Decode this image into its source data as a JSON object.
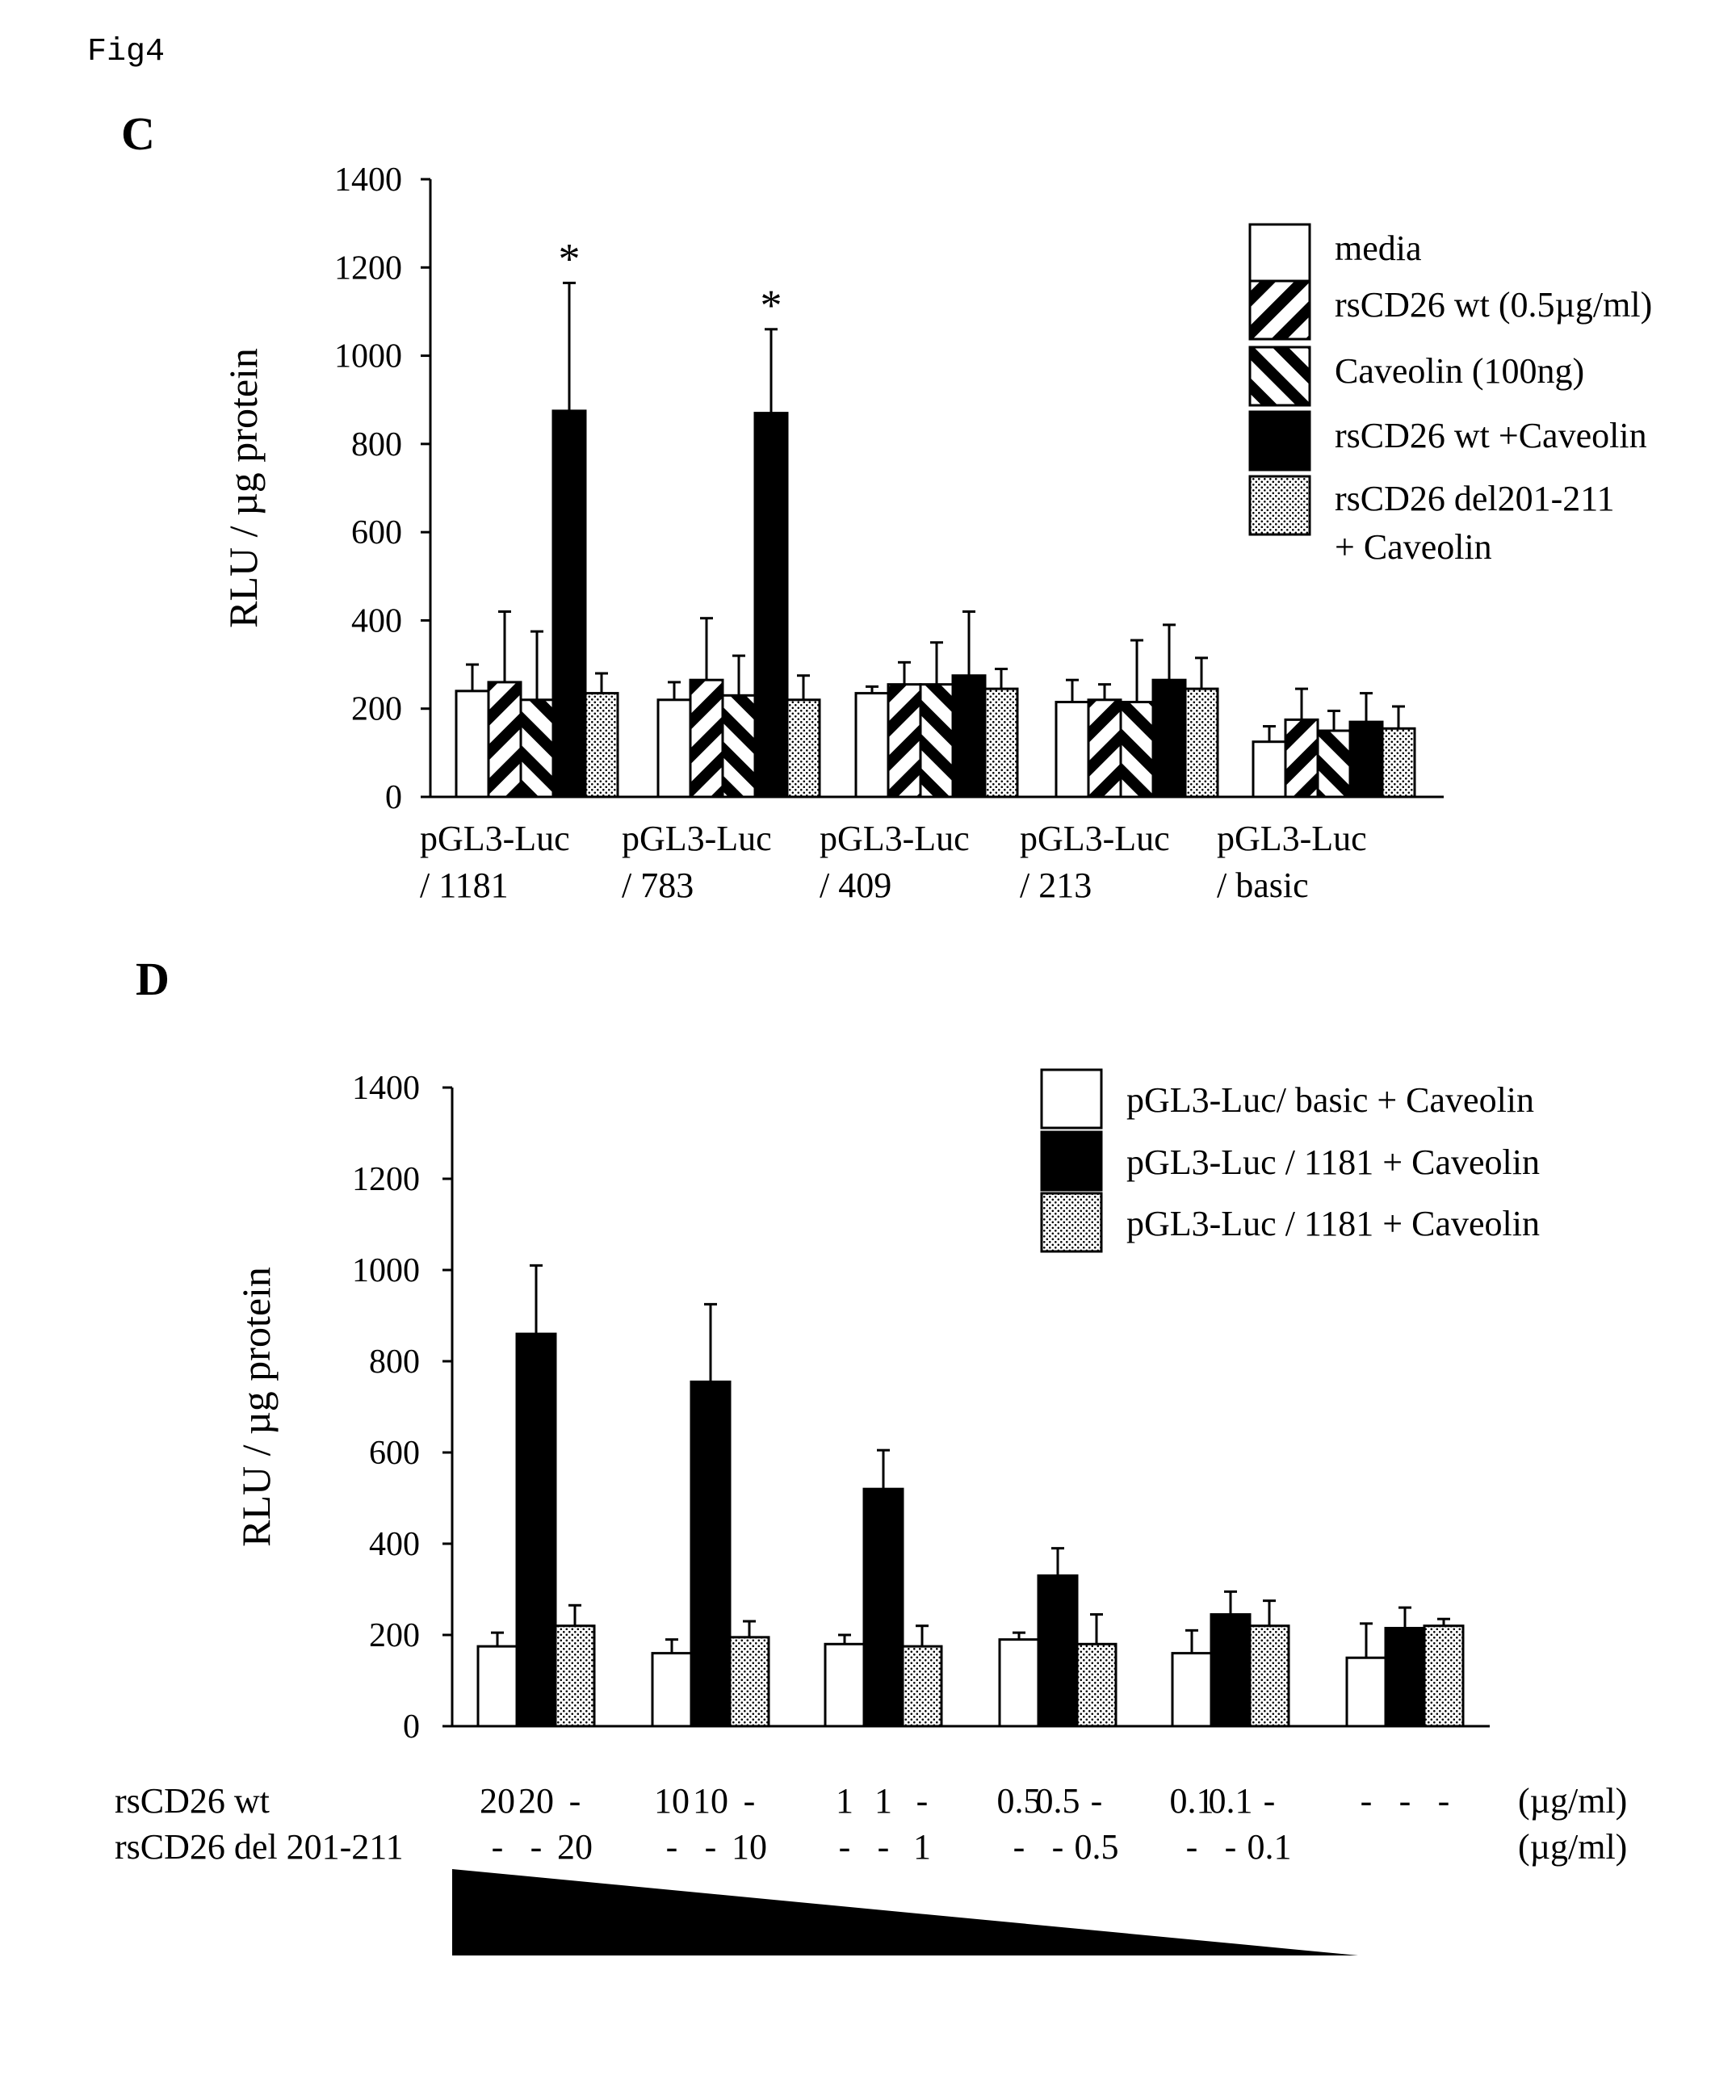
{
  "figure_label": "Fig4",
  "chart_data": [
    {
      "panel": "C",
      "type": "bar",
      "ylabel": "RLU / µg protein",
      "ylim": [
        0,
        1400
      ],
      "yticks": [
        0,
        200,
        400,
        600,
        800,
        1000,
        1200,
        1400
      ],
      "categories": [
        [
          "pGL3-Luc",
          "/ 1181"
        ],
        [
          "pGL3-Luc",
          "/ 783"
        ],
        [
          "pGL3-Luc",
          "/ 409"
        ],
        [
          "pGL3-Luc",
          "/ 213"
        ],
        [
          "pGL3-Luc",
          "/ basic"
        ]
      ],
      "series": [
        {
          "name": "media",
          "pattern": "white",
          "values": [
            240,
            220,
            235,
            215,
            125
          ],
          "errors": [
            60,
            40,
            15,
            50,
            35
          ]
        },
        {
          "name": "rsCD26 wt (0.5µg/ml)",
          "pattern": "hatch-right",
          "values": [
            260,
            265,
            255,
            220,
            175
          ],
          "errors": [
            160,
            140,
            50,
            35,
            70
          ]
        },
        {
          "name": "Caveolin (100ng)",
          "pattern": "hatch-left",
          "values": [
            220,
            230,
            255,
            215,
            150
          ],
          "errors": [
            155,
            90,
            95,
            140,
            45
          ]
        },
        {
          "name": "rsCD26 wt +Caveolin",
          "pattern": "black",
          "values": [
            875,
            870,
            275,
            265,
            170
          ],
          "errors": [
            290,
            190,
            145,
            125,
            65
          ]
        },
        {
          "name": "rsCD26 del201-211\n+ Caveolin",
          "pattern": "dots",
          "values": [
            235,
            220,
            245,
            245,
            155
          ],
          "errors": [
            45,
            55,
            45,
            70,
            50
          ]
        }
      ],
      "annotations": [
        {
          "text": "*",
          "category": 0,
          "series": 3
        },
        {
          "text": "*",
          "category": 1,
          "series": 3
        }
      ],
      "legend_position": "top-right"
    },
    {
      "panel": "D",
      "type": "bar",
      "ylabel": "RLU / µg protein",
      "ylim": [
        0,
        1400
      ],
      "yticks": [
        0,
        200,
        400,
        600,
        800,
        1000,
        1200,
        1400
      ],
      "group_count": 6,
      "series": [
        {
          "name": "pGL3-Luc/ basic + Caveolin",
          "pattern": "white",
          "values": [
            175,
            160,
            180,
            190,
            160,
            150
          ],
          "errors": [
            30,
            30,
            20,
            15,
            50,
            75
          ]
        },
        {
          "name": "pGL3-Luc / 1181 + Caveolin",
          "pattern": "black",
          "values": [
            860,
            755,
            520,
            330,
            245,
            215
          ],
          "errors": [
            150,
            170,
            85,
            60,
            50,
            45
          ]
        },
        {
          "name": "pGL3-Luc / 1181 + Caveolin",
          "pattern": "dots",
          "values": [
            220,
            195,
            175,
            180,
            220,
            220
          ],
          "errors": [
            45,
            35,
            45,
            65,
            55,
            15
          ]
        }
      ],
      "legend_position": "top-right",
      "condition_rows": [
        {
          "label": "rsCD26 wt",
          "unit": "(µg/ml)",
          "cells": [
            [
              "20",
              "20",
              "-"
            ],
            [
              "10",
              "10",
              "-"
            ],
            [
              "1",
              "1",
              "-"
            ],
            [
              "0.5",
              "0.5",
              "-"
            ],
            [
              "0.1",
              "0.1",
              "-"
            ],
            [
              "-",
              "-",
              "-"
            ]
          ]
        },
        {
          "label": "rsCD26 del 201-211",
          "unit": "(µg/ml)",
          "cells": [
            [
              "-",
              "-",
              "20"
            ],
            [
              "-",
              "-",
              "10"
            ],
            [
              "-",
              "-",
              "1"
            ],
            [
              "-",
              "-",
              "0.5"
            ],
            [
              "-",
              "-",
              "0.1"
            ],
            [
              "",
              "",
              ""
            ]
          ]
        }
      ],
      "gradient_wedge": "decreasing"
    }
  ]
}
